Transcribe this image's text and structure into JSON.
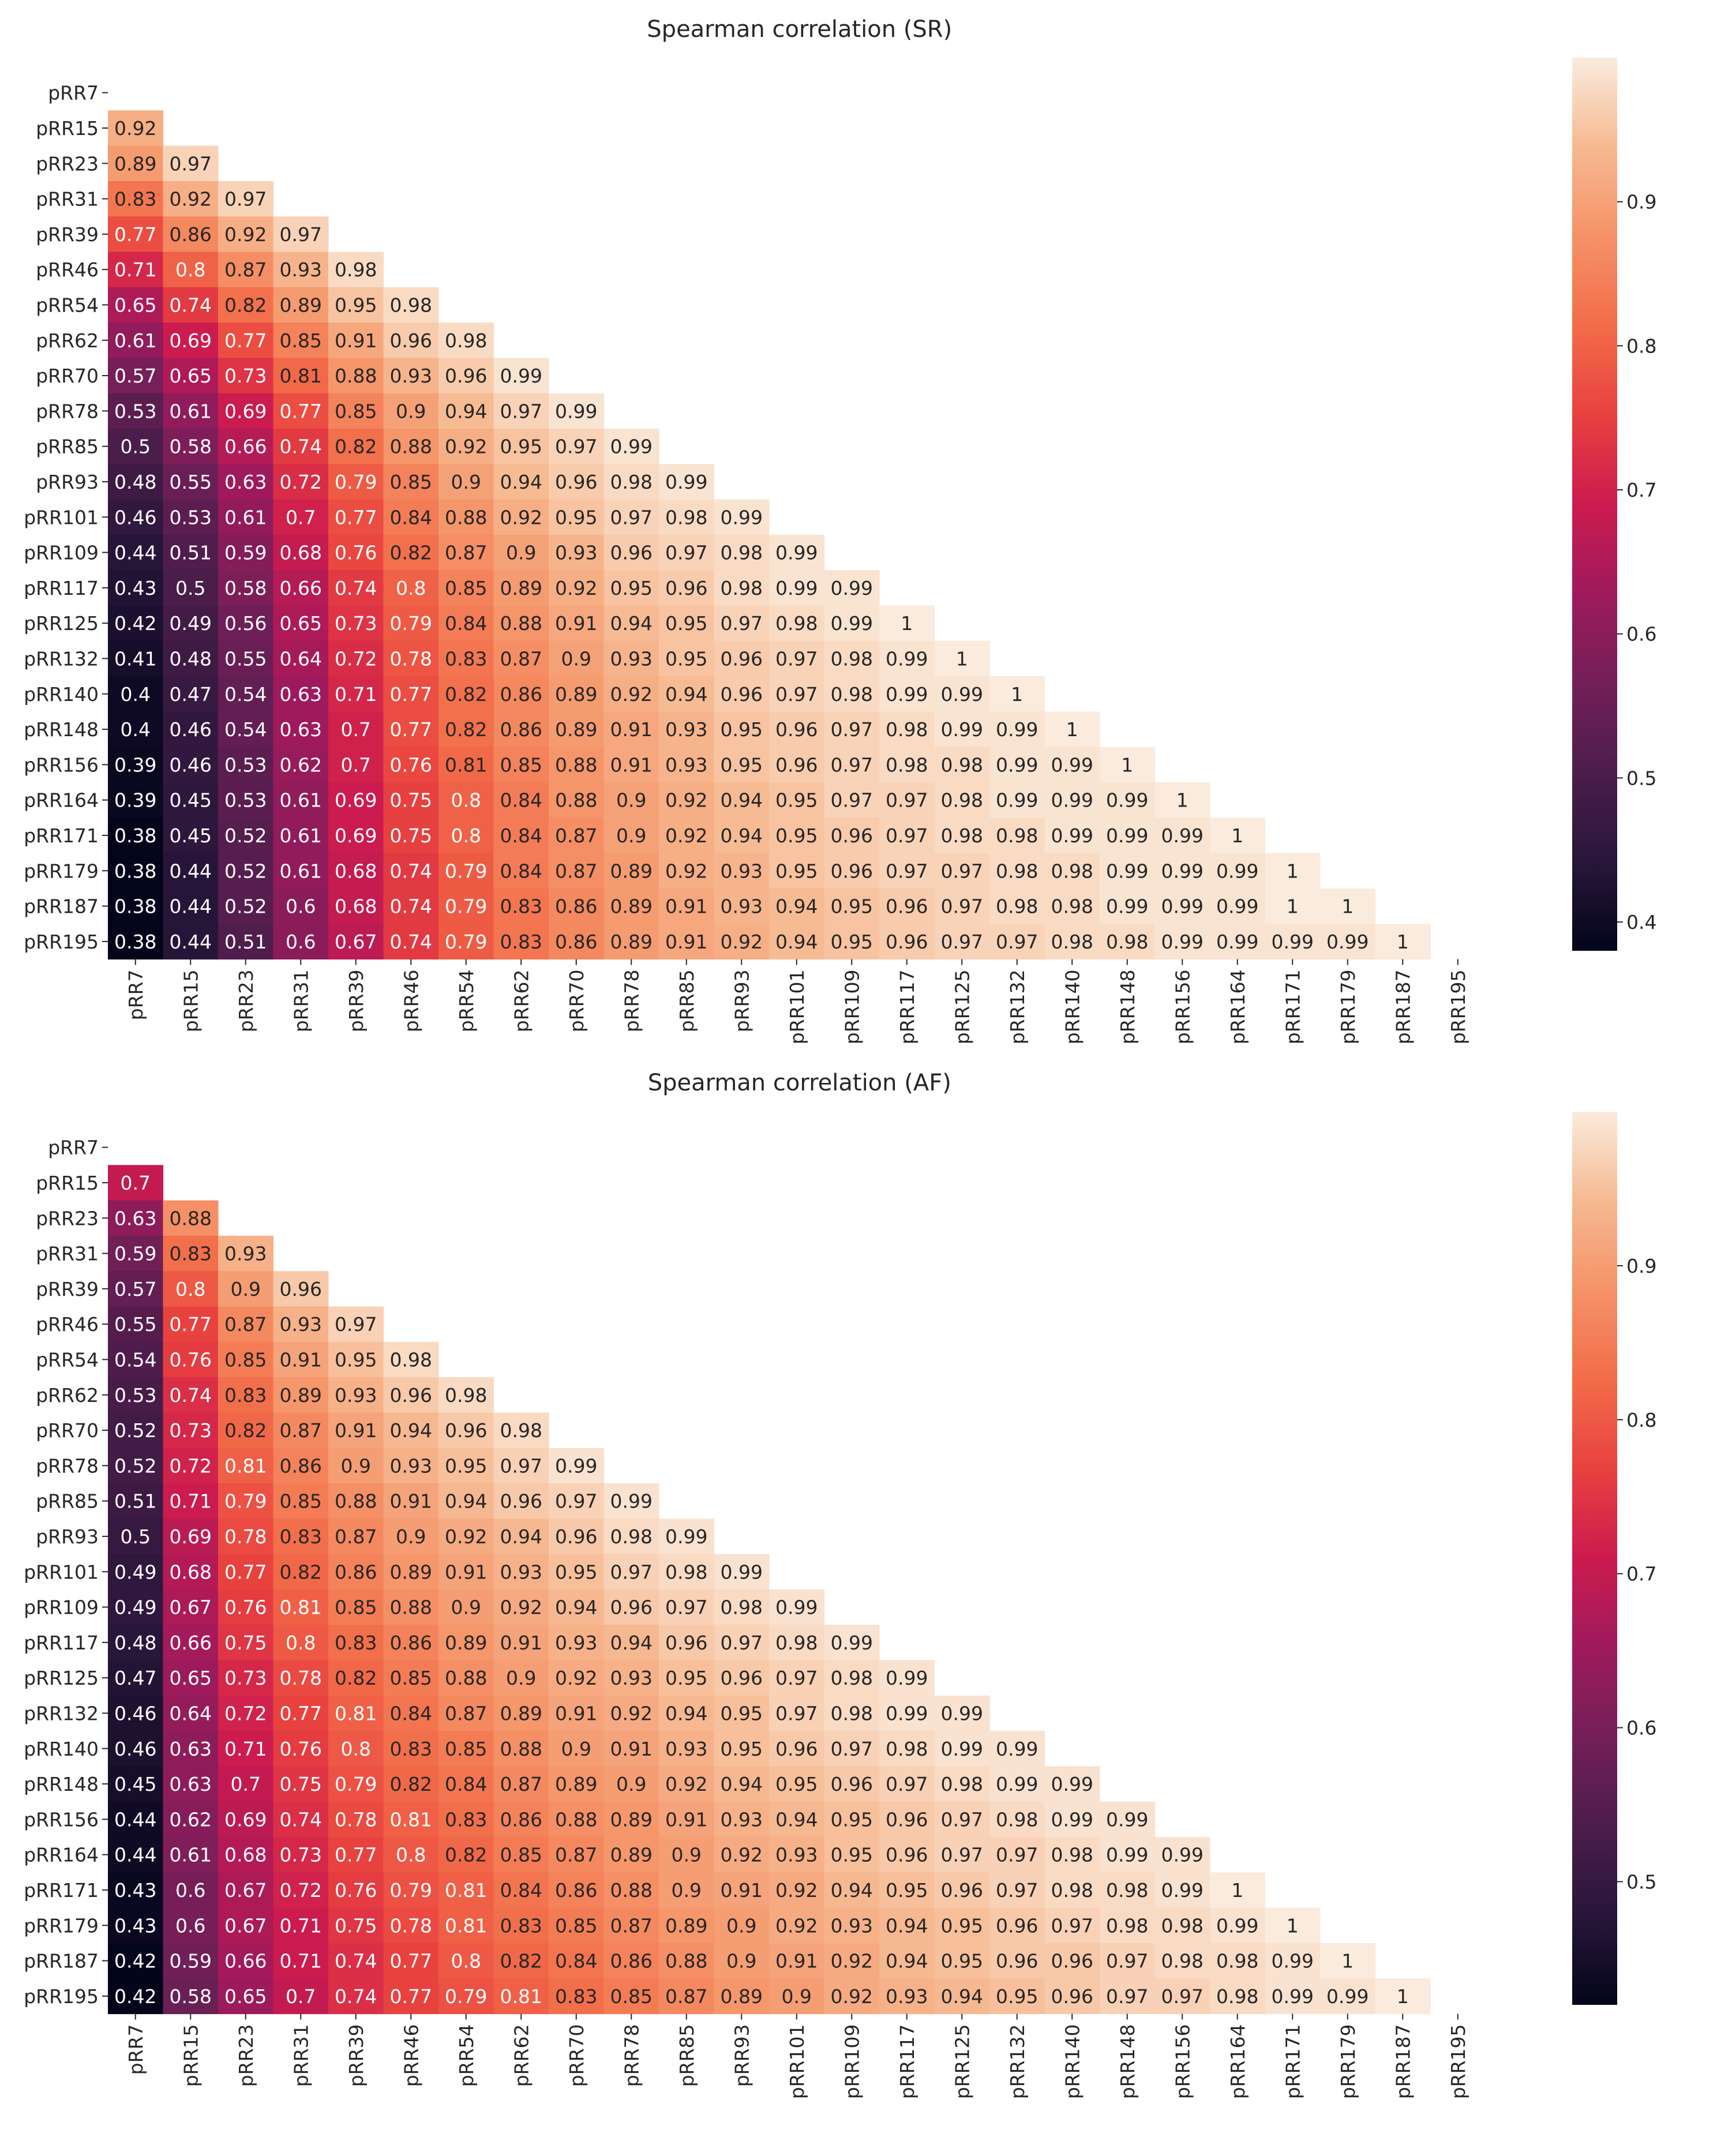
{
  "chart_data": [
    {
      "type": "heatmap",
      "title": "Spearman correlation (SR)",
      "labels": [
        "pRR7",
        "pRR15",
        "pRR23",
        "pRR31",
        "pRR39",
        "pRR46",
        "pRR54",
        "pRR62",
        "pRR70",
        "pRR78",
        "pRR85",
        "pRR93",
        "pRR101",
        "pRR109",
        "pRR117",
        "pRR125",
        "pRR132",
        "pRR140",
        "pRR148",
        "pRR156",
        "pRR164",
        "pRR171",
        "pRR179",
        "pRR187",
        "pRR195"
      ],
      "mask": "upper triangle incl. diagonal",
      "colormap": "rocket",
      "vmin": 0.38,
      "vmax": 1.0,
      "colorbar_ticks": [
        0.4,
        0.5,
        0.6,
        0.7,
        0.8,
        0.9
      ],
      "rows": [
        [],
        [
          0.92
        ],
        [
          0.89,
          0.97
        ],
        [
          0.83,
          0.92,
          0.97
        ],
        [
          0.77,
          0.86,
          0.92,
          0.97
        ],
        [
          0.71,
          0.8,
          0.87,
          0.93,
          0.98
        ],
        [
          0.65,
          0.74,
          0.82,
          0.89,
          0.95,
          0.98
        ],
        [
          0.61,
          0.69,
          0.77,
          0.85,
          0.91,
          0.96,
          0.98
        ],
        [
          0.57,
          0.65,
          0.73,
          0.81,
          0.88,
          0.93,
          0.96,
          0.99
        ],
        [
          0.53,
          0.61,
          0.69,
          0.77,
          0.85,
          0.9,
          0.94,
          0.97,
          0.99
        ],
        [
          0.5,
          0.58,
          0.66,
          0.74,
          0.82,
          0.88,
          0.92,
          0.95,
          0.97,
          0.99
        ],
        [
          0.48,
          0.55,
          0.63,
          0.72,
          0.79,
          0.85,
          0.9,
          0.94,
          0.96,
          0.98,
          0.99
        ],
        [
          0.46,
          0.53,
          0.61,
          0.7,
          0.77,
          0.84,
          0.88,
          0.92,
          0.95,
          0.97,
          0.98,
          0.99
        ],
        [
          0.44,
          0.51,
          0.59,
          0.68,
          0.76,
          0.82,
          0.87,
          0.9,
          0.93,
          0.96,
          0.97,
          0.98,
          0.99
        ],
        [
          0.43,
          0.5,
          0.58,
          0.66,
          0.74,
          0.8,
          0.85,
          0.89,
          0.92,
          0.95,
          0.96,
          0.98,
          0.99,
          0.99
        ],
        [
          0.42,
          0.49,
          0.56,
          0.65,
          0.73,
          0.79,
          0.84,
          0.88,
          0.91,
          0.94,
          0.95,
          0.97,
          0.98,
          0.99,
          1
        ],
        [
          0.41,
          0.48,
          0.55,
          0.64,
          0.72,
          0.78,
          0.83,
          0.87,
          0.9,
          0.93,
          0.95,
          0.96,
          0.97,
          0.98,
          0.99,
          1
        ],
        [
          0.4,
          0.47,
          0.54,
          0.63,
          0.71,
          0.77,
          0.82,
          0.86,
          0.89,
          0.92,
          0.94,
          0.96,
          0.97,
          0.98,
          0.99,
          0.99,
          1
        ],
        [
          0.4,
          0.46,
          0.54,
          0.63,
          0.7,
          0.77,
          0.82,
          0.86,
          0.89,
          0.91,
          0.93,
          0.95,
          0.96,
          0.97,
          0.98,
          0.99,
          0.99,
          1
        ],
        [
          0.39,
          0.46,
          0.53,
          0.62,
          0.7,
          0.76,
          0.81,
          0.85,
          0.88,
          0.91,
          0.93,
          0.95,
          0.96,
          0.97,
          0.98,
          0.98,
          0.99,
          0.99,
          1
        ],
        [
          0.39,
          0.45,
          0.53,
          0.61,
          0.69,
          0.75,
          0.8,
          0.84,
          0.88,
          0.9,
          0.92,
          0.94,
          0.95,
          0.97,
          0.97,
          0.98,
          0.99,
          0.99,
          0.99,
          1
        ],
        [
          0.38,
          0.45,
          0.52,
          0.61,
          0.69,
          0.75,
          0.8,
          0.84,
          0.87,
          0.9,
          0.92,
          0.94,
          0.95,
          0.96,
          0.97,
          0.98,
          0.98,
          0.99,
          0.99,
          0.99,
          1
        ],
        [
          0.38,
          0.44,
          0.52,
          0.61,
          0.68,
          0.74,
          0.79,
          0.84,
          0.87,
          0.89,
          0.92,
          0.93,
          0.95,
          0.96,
          0.97,
          0.97,
          0.98,
          0.98,
          0.99,
          0.99,
          0.99,
          1
        ],
        [
          0.38,
          0.44,
          0.52,
          0.6,
          0.68,
          0.74,
          0.79,
          0.83,
          0.86,
          0.89,
          0.91,
          0.93,
          0.94,
          0.95,
          0.96,
          0.97,
          0.98,
          0.98,
          0.99,
          0.99,
          0.99,
          1,
          1
        ],
        [
          0.38,
          0.44,
          0.51,
          0.6,
          0.67,
          0.74,
          0.79,
          0.83,
          0.86,
          0.89,
          0.91,
          0.92,
          0.94,
          0.95,
          0.96,
          0.97,
          0.97,
          0.98,
          0.98,
          0.99,
          0.99,
          0.99,
          0.99,
          1
        ]
      ]
    },
    {
      "type": "heatmap",
      "title": "Spearman correlation (AF)",
      "labels": [
        "pRR7",
        "pRR15",
        "pRR23",
        "pRR31",
        "pRR39",
        "pRR46",
        "pRR54",
        "pRR62",
        "pRR70",
        "pRR78",
        "pRR85",
        "pRR93",
        "pRR101",
        "pRR109",
        "pRR117",
        "pRR125",
        "pRR132",
        "pRR140",
        "pRR148",
        "pRR156",
        "pRR164",
        "pRR171",
        "pRR179",
        "pRR187",
        "pRR195"
      ],
      "mask": "upper triangle incl. diagonal",
      "colormap": "rocket",
      "vmin": 0.42,
      "vmax": 1.0,
      "colorbar_ticks": [
        0.5,
        0.6,
        0.7,
        0.8,
        0.9
      ],
      "rows": [
        [],
        [
          0.7
        ],
        [
          0.63,
          0.88
        ],
        [
          0.59,
          0.83,
          0.93
        ],
        [
          0.57,
          0.8,
          0.9,
          0.96
        ],
        [
          0.55,
          0.77,
          0.87,
          0.93,
          0.97
        ],
        [
          0.54,
          0.76,
          0.85,
          0.91,
          0.95,
          0.98
        ],
        [
          0.53,
          0.74,
          0.83,
          0.89,
          0.93,
          0.96,
          0.98
        ],
        [
          0.52,
          0.73,
          0.82,
          0.87,
          0.91,
          0.94,
          0.96,
          0.98
        ],
        [
          0.52,
          0.72,
          0.81,
          0.86,
          0.9,
          0.93,
          0.95,
          0.97,
          0.99
        ],
        [
          0.51,
          0.71,
          0.79,
          0.85,
          0.88,
          0.91,
          0.94,
          0.96,
          0.97,
          0.99
        ],
        [
          0.5,
          0.69,
          0.78,
          0.83,
          0.87,
          0.9,
          0.92,
          0.94,
          0.96,
          0.98,
          0.99
        ],
        [
          0.49,
          0.68,
          0.77,
          0.82,
          0.86,
          0.89,
          0.91,
          0.93,
          0.95,
          0.97,
          0.98,
          0.99
        ],
        [
          0.49,
          0.67,
          0.76,
          0.81,
          0.85,
          0.88,
          0.9,
          0.92,
          0.94,
          0.96,
          0.97,
          0.98,
          0.99
        ],
        [
          0.48,
          0.66,
          0.75,
          0.8,
          0.83,
          0.86,
          0.89,
          0.91,
          0.93,
          0.94,
          0.96,
          0.97,
          0.98,
          0.99
        ],
        [
          0.47,
          0.65,
          0.73,
          0.78,
          0.82,
          0.85,
          0.88,
          0.9,
          0.92,
          0.93,
          0.95,
          0.96,
          0.97,
          0.98,
          0.99
        ],
        [
          0.46,
          0.64,
          0.72,
          0.77,
          0.81,
          0.84,
          0.87,
          0.89,
          0.91,
          0.92,
          0.94,
          0.95,
          0.97,
          0.98,
          0.99,
          0.99
        ],
        [
          0.46,
          0.63,
          0.71,
          0.76,
          0.8,
          0.83,
          0.85,
          0.88,
          0.9,
          0.91,
          0.93,
          0.95,
          0.96,
          0.97,
          0.98,
          0.99,
          0.99
        ],
        [
          0.45,
          0.63,
          0.7,
          0.75,
          0.79,
          0.82,
          0.84,
          0.87,
          0.89,
          0.9,
          0.92,
          0.94,
          0.95,
          0.96,
          0.97,
          0.98,
          0.99,
          0.99
        ],
        [
          0.44,
          0.62,
          0.69,
          0.74,
          0.78,
          0.81,
          0.83,
          0.86,
          0.88,
          0.89,
          0.91,
          0.93,
          0.94,
          0.95,
          0.96,
          0.97,
          0.98,
          0.99,
          0.99
        ],
        [
          0.44,
          0.61,
          0.68,
          0.73,
          0.77,
          0.8,
          0.82,
          0.85,
          0.87,
          0.89,
          0.9,
          0.92,
          0.93,
          0.95,
          0.96,
          0.97,
          0.97,
          0.98,
          0.99,
          0.99
        ],
        [
          0.43,
          0.6,
          0.67,
          0.72,
          0.76,
          0.79,
          0.81,
          0.84,
          0.86,
          0.88,
          0.9,
          0.91,
          0.92,
          0.94,
          0.95,
          0.96,
          0.97,
          0.98,
          0.98,
          0.99,
          1
        ],
        [
          0.43,
          0.6,
          0.67,
          0.71,
          0.75,
          0.78,
          0.81,
          0.83,
          0.85,
          0.87,
          0.89,
          0.9,
          0.92,
          0.93,
          0.94,
          0.95,
          0.96,
          0.97,
          0.98,
          0.98,
          0.99,
          1
        ],
        [
          0.42,
          0.59,
          0.66,
          0.71,
          0.74,
          0.77,
          0.8,
          0.82,
          0.84,
          0.86,
          0.88,
          0.9,
          0.91,
          0.92,
          0.94,
          0.95,
          0.96,
          0.96,
          0.97,
          0.98,
          0.98,
          0.99,
          1
        ],
        [
          0.42,
          0.58,
          0.65,
          0.7,
          0.74,
          0.77,
          0.79,
          0.81,
          0.83,
          0.85,
          0.87,
          0.89,
          0.9,
          0.92,
          0.93,
          0.94,
          0.95,
          0.96,
          0.97,
          0.97,
          0.98,
          0.99,
          0.99,
          1
        ]
      ]
    }
  ]
}
